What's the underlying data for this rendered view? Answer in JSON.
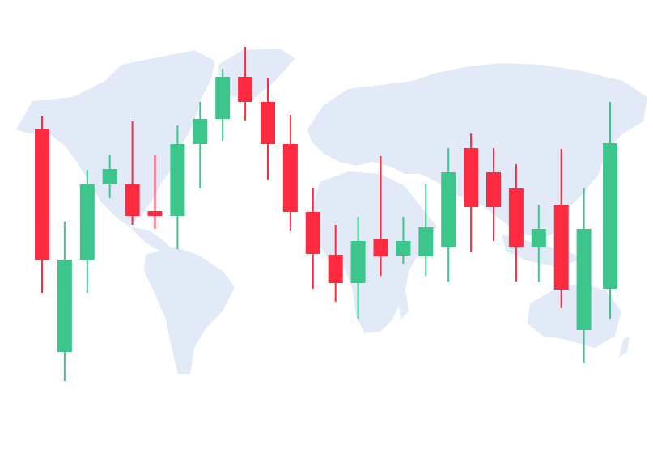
{
  "chart_data": {
    "type": "candlestick",
    "title": "",
    "xlabel": "",
    "ylabel": "",
    "background": "world-map",
    "grid": false,
    "legend": "none",
    "ylim": [
      20,
      450
    ],
    "colors": {
      "up": "#3cc68c",
      "down": "#fe2a40",
      "map": "#e2eaf7"
    },
    "candles": [
      {
        "open": 340,
        "high": 357,
        "low": 138,
        "close": 179
      },
      {
        "open": 65,
        "high": 226,
        "low": 29,
        "close": 179
      },
      {
        "open": 179,
        "high": 290,
        "low": 138,
        "close": 272
      },
      {
        "open": 272,
        "high": 308,
        "low": 255,
        "close": 291
      },
      {
        "open": 272,
        "high": 350,
        "low": 222,
        "close": 233
      },
      {
        "open": 239,
        "high": 308,
        "low": 217,
        "close": 233
      },
      {
        "open": 233,
        "high": 345,
        "low": 192,
        "close": 322
      },
      {
        "open": 322,
        "high": 374,
        "low": 267,
        "close": 353
      },
      {
        "open": 353,
        "high": 415,
        "low": 326,
        "close": 405
      },
      {
        "open": 405,
        "high": 442,
        "low": 351,
        "close": 374
      },
      {
        "open": 374,
        "high": 404,
        "low": 278,
        "close": 322
      },
      {
        "open": 322,
        "high": 358,
        "low": 215,
        "close": 238
      },
      {
        "open": 238,
        "high": 268,
        "low": 143,
        "close": 186
      },
      {
        "open": 185,
        "high": 222,
        "low": 127,
        "close": 150
      },
      {
        "open": 150,
        "high": 232,
        "low": 106,
        "close": 202
      },
      {
        "open": 204,
        "high": 307,
        "low": 159,
        "close": 183
      },
      {
        "open": 184,
        "high": 232,
        "low": 174,
        "close": 202
      },
      {
        "open": 183,
        "high": 272,
        "low": 159,
        "close": 219
      },
      {
        "open": 195,
        "high": 317,
        "low": 152,
        "close": 287
      },
      {
        "open": 317,
        "high": 335,
        "low": 188,
        "close": 244
      },
      {
        "open": 287,
        "high": 317,
        "low": 202,
        "close": 244
      },
      {
        "open": 267,
        "high": 297,
        "low": 152,
        "close": 195
      },
      {
        "open": 195,
        "high": 247,
        "low": 152,
        "close": 217
      },
      {
        "open": 247,
        "high": 316,
        "low": 119,
        "close": 142
      },
      {
        "open": 92,
        "high": 267,
        "low": 51,
        "close": 217
      },
      {
        "open": 143,
        "high": 374,
        "low": 106,
        "close": 323
      }
    ]
  }
}
